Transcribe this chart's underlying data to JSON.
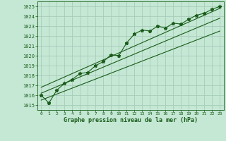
{
  "title": "Graphe pression niveau de la mer (hPa)",
  "bg_color": "#c4e8d4",
  "grid_color": "#a8ccba",
  "line_color": "#1a5c1a",
  "text_color": "#1a5c1a",
  "x_values": [
    0,
    1,
    2,
    3,
    4,
    5,
    6,
    7,
    8,
    9,
    10,
    11,
    12,
    13,
    14,
    15,
    16,
    17,
    18,
    19,
    20,
    21,
    22,
    23
  ],
  "y_values": [
    1016.0,
    1015.2,
    1016.5,
    1017.2,
    1017.6,
    1018.2,
    1018.3,
    1019.0,
    1019.4,
    1020.1,
    1020.0,
    1021.3,
    1022.2,
    1022.6,
    1022.5,
    1023.0,
    1022.8,
    1023.3,
    1023.2,
    1023.7,
    1024.1,
    1024.3,
    1024.7,
    1025.0
  ],
  "trend1_x": [
    0,
    23
  ],
  "trend1_y": [
    1015.5,
    1022.5
  ],
  "trend2_x": [
    0,
    23
  ],
  "trend2_y": [
    1016.2,
    1023.8
  ],
  "trend3_x": [
    0,
    23
  ],
  "trend3_y": [
    1016.8,
    1024.8
  ],
  "ylim": [
    1014.5,
    1025.5
  ],
  "xlim": [
    -0.5,
    23.5
  ],
  "yticks": [
    1015,
    1016,
    1017,
    1018,
    1019,
    1020,
    1021,
    1022,
    1023,
    1024,
    1025
  ],
  "xticks": [
    0,
    1,
    2,
    3,
    4,
    5,
    6,
    7,
    8,
    9,
    10,
    11,
    12,
    13,
    14,
    15,
    16,
    17,
    18,
    19,
    20,
    21,
    22,
    23
  ],
  "xtick_labels": [
    "0",
    "1",
    "2",
    "3",
    "4",
    "5",
    "6",
    "7",
    "8",
    "9",
    "10",
    "11",
    "12",
    "13",
    "14",
    "15",
    "16",
    "17",
    "18",
    "19",
    "20",
    "21",
    "22",
    "23"
  ]
}
